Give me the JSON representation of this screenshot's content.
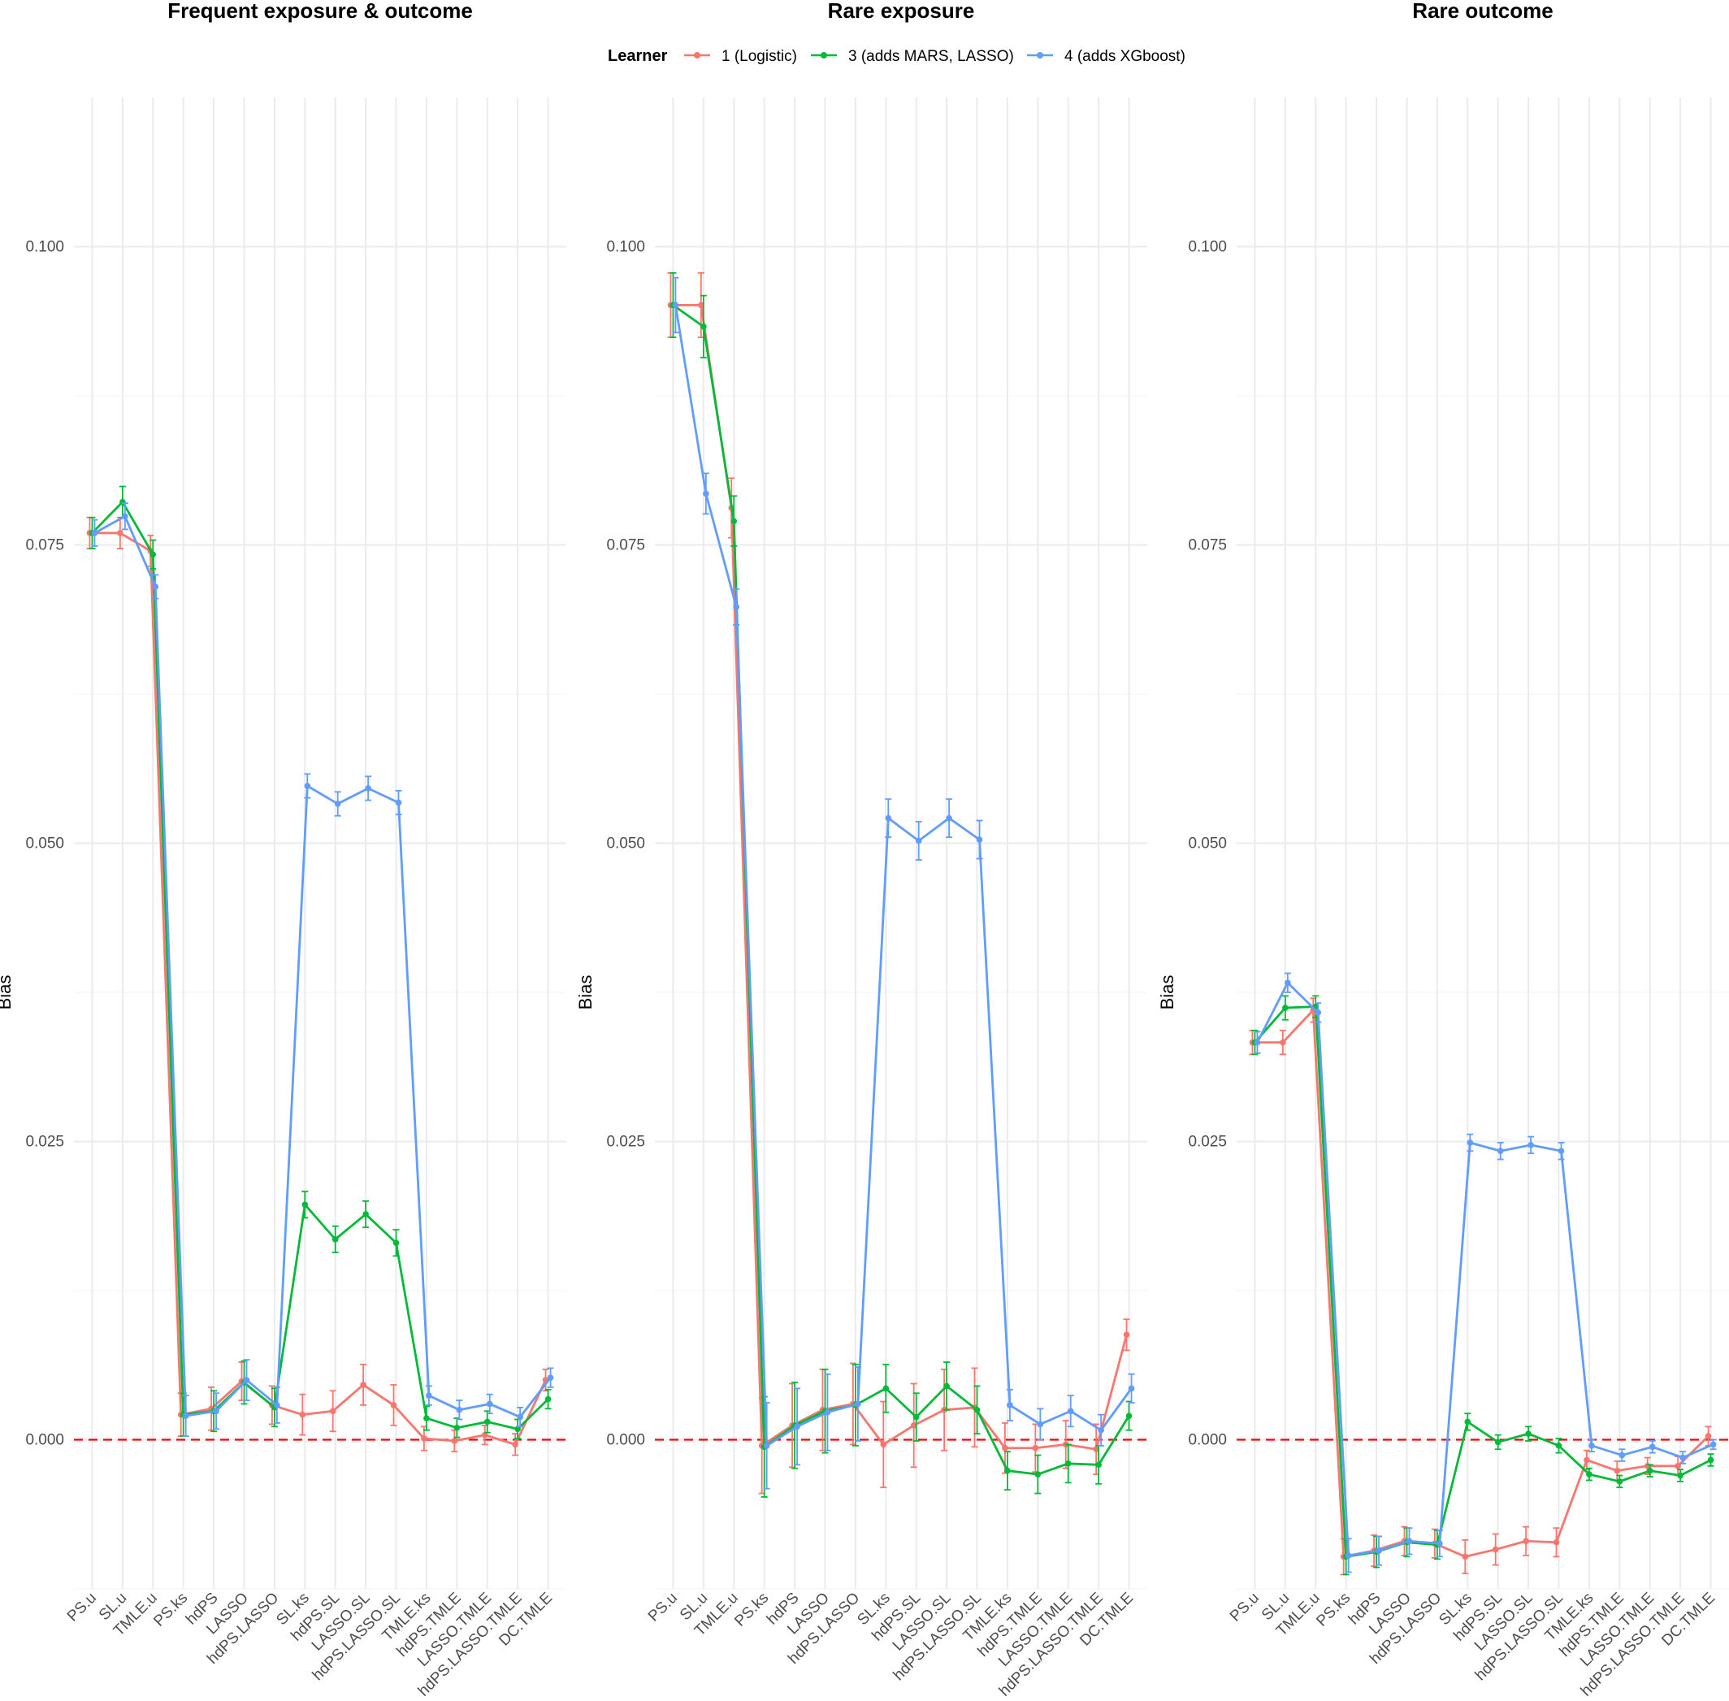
{
  "legend": {
    "title": "Learner",
    "entries": [
      "1 (Logistic)",
      "3 (adds MARS, LASSO)",
      "4 (adds XGboost)"
    ],
    "colors": [
      "#F8766D",
      "#00BA38",
      "#619CFF"
    ],
    "position": "top"
  },
  "chart_data": [
    {
      "type": "line",
      "title": "Frequent exposure & outcome",
      "xlabel": "",
      "ylabel": "Bias",
      "ylim": [
        -0.0125,
        0.1125
      ],
      "yticks": [
        "0.000",
        "0.025",
        "0.050",
        "0.075",
        "0.100"
      ],
      "reference_line": {
        "y": 0,
        "style": "dashed",
        "color": "#FF0000"
      },
      "grid": true,
      "categories": [
        "PS.u",
        "SL.u",
        "TMLE.u",
        "PS.ks",
        "hdPS",
        "LASSO",
        "hdPS.LASSO",
        "SL.ks",
        "hdPS.SL",
        "LASSO.SL",
        "hdPS.LASSO.SL",
        "TMLE.ks",
        "hdPS.TMLE",
        "LASSO.TMLE",
        "hdPS.LASSO.TMLE",
        "DC.TMLE"
      ],
      "series": [
        {
          "name": "1 (Logistic)",
          "values": [
            0.076,
            0.076,
            0.0745,
            0.0021,
            0.0026,
            0.0049,
            0.0029,
            0.0021,
            0.0024,
            0.0046,
            0.0029,
            0.0001,
            -0.0001,
            0.0004,
            -0.0004,
            0.005
          ],
          "err": [
            0.0013,
            0.0013,
            0.0013,
            0.0018,
            0.0018,
            0.0016,
            0.0016,
            0.0017,
            0.0017,
            0.0017,
            0.0017,
            0.001,
            0.0009,
            0.0008,
            0.0009,
            0.0009
          ]
        },
        {
          "name": "3 (adds MARS, LASSO)",
          "values": [
            0.076,
            0.0786,
            0.0742,
            0.0021,
            0.0024,
            0.0048,
            0.0027,
            0.0197,
            0.0168,
            0.0189,
            0.0165,
            0.0018,
            0.001,
            0.0015,
            0.0009,
            0.0034
          ],
          "err": [
            0.0013,
            0.0013,
            0.0012,
            0.0018,
            0.0017,
            0.0018,
            0.0016,
            0.0011,
            0.0011,
            0.0011,
            0.0011,
            0.001,
            0.0008,
            0.0009,
            0.0008,
            0.0008
          ]
        },
        {
          "name": "4 (adds XGboost)",
          "values": [
            0.076,
            0.0774,
            0.0715,
            0.002,
            0.0024,
            0.005,
            0.0029,
            0.0548,
            0.0533,
            0.0546,
            0.0534,
            0.0037,
            0.0025,
            0.003,
            0.0019,
            0.0052
          ],
          "err": [
            0.0011,
            0.0011,
            0.001,
            0.0017,
            0.0015,
            0.0017,
            0.0015,
            0.001,
            0.001,
            0.001,
            0.001,
            0.0008,
            0.0008,
            0.0008,
            0.0008,
            0.0008
          ]
        }
      ]
    },
    {
      "type": "line",
      "title": "Rare exposure",
      "xlabel": "",
      "ylabel": "Bias",
      "ylim": [
        -0.0125,
        0.1125
      ],
      "yticks": [
        "0.000",
        "0.025",
        "0.050",
        "0.075",
        "0.100"
      ],
      "reference_line": {
        "y": 0,
        "style": "dashed",
        "color": "#FF0000"
      },
      "grid": true,
      "categories": [
        "PS.u",
        "SL.u",
        "TMLE.u",
        "PS.ks",
        "hdPS",
        "LASSO",
        "hdPS.LASSO",
        "SL.ks",
        "hdPS.SL",
        "LASSO.SL",
        "hdPS.LASSO.SL",
        "TMLE.ks",
        "hdPS.TMLE",
        "LASSO.TMLE",
        "hdPS.LASSO.TMLE",
        "DC.TMLE"
      ],
      "series": [
        {
          "name": "1 (Logistic)",
          "values": [
            0.0951,
            0.0951,
            0.0781,
            -0.0005,
            0.0012,
            0.0025,
            0.003,
            -0.0004,
            0.0012,
            0.0025,
            0.0027,
            -0.0007,
            -0.0007,
            -0.0004,
            -0.0008,
            0.0088
          ],
          "err": [
            0.0027,
            0.0027,
            0.0025,
            0.004,
            0.0035,
            0.0034,
            0.0034,
            0.0036,
            0.0035,
            0.0034,
            0.0033,
            0.0021,
            0.002,
            0.002,
            0.0021,
            0.0013
          ]
        },
        {
          "name": "3 (adds MARS, LASSO)",
          "values": [
            0.0951,
            0.0933,
            0.077,
            -0.0006,
            0.0012,
            0.0024,
            0.0029,
            0.0043,
            0.0019,
            0.0045,
            0.0025,
            -0.0026,
            -0.0029,
            -0.002,
            -0.0021,
            0.002
          ],
          "err": [
            0.0027,
            0.0026,
            0.0021,
            0.0042,
            0.0036,
            0.0035,
            0.0034,
            0.002,
            0.002,
            0.002,
            0.002,
            0.0016,
            0.0016,
            0.0016,
            0.0016,
            0.0012
          ]
        },
        {
          "name": "4 (adds XGboost)",
          "values": [
            0.0951,
            0.0793,
            0.0698,
            -0.0005,
            0.0011,
            0.0023,
            0.003,
            0.0521,
            0.0502,
            0.0521,
            0.0503,
            0.0029,
            0.0013,
            0.0024,
            0.0008,
            0.0043
          ],
          "err": [
            0.0023,
            0.0017,
            0.0015,
            0.0036,
            0.0032,
            0.0032,
            0.0031,
            0.0016,
            0.0016,
            0.0016,
            0.0016,
            0.0013,
            0.0013,
            0.0013,
            0.0013,
            0.0012
          ]
        }
      ]
    },
    {
      "type": "line",
      "title": "Rare outcome",
      "xlabel": "",
      "ylabel": "Bias",
      "ylim": [
        -0.0125,
        0.1125
      ],
      "yticks": [
        "0.000",
        "0.025",
        "0.050",
        "0.075",
        "0.100"
      ],
      "reference_line": {
        "y": 0,
        "style": "dashed",
        "color": "#FF0000"
      },
      "grid": true,
      "categories": [
        "PS.u",
        "SL.u",
        "TMLE.u",
        "PS.ks",
        "hdPS",
        "LASSO",
        "hdPS.LASSO",
        "SL.ks",
        "hdPS.SL",
        "LASSO.SL",
        "hdPS.LASSO.SL",
        "TMLE.ks",
        "hdPS.TMLE",
        "LASSO.TMLE",
        "hdPS.LASSO.TMLE",
        "DC.TMLE"
      ],
      "series": [
        {
          "name": "1 (Logistic)",
          "values": [
            0.0333,
            0.0333,
            0.036,
            -0.0098,
            -0.0093,
            -0.0085,
            -0.0087,
            -0.0098,
            -0.0092,
            -0.0085,
            -0.0086,
            -0.0017,
            -0.0026,
            -0.0022,
            -0.0022,
            0.0003
          ],
          "err": [
            0.001,
            0.001,
            0.001,
            0.0015,
            0.0013,
            0.0012,
            0.0012,
            0.0014,
            0.0013,
            0.0012,
            0.0012,
            0.0008,
            0.0008,
            0.0007,
            0.0008,
            0.0008
          ]
        },
        {
          "name": "3 (adds MARS, LASSO)",
          "values": [
            0.0333,
            0.0362,
            0.0363,
            -0.0098,
            -0.0094,
            -0.0086,
            -0.0088,
            0.0015,
            -0.0002,
            0.0005,
            -0.0005,
            -0.0029,
            -0.0035,
            -0.0026,
            -0.003,
            -0.0017
          ],
          "err": [
            0.001,
            0.001,
            0.0009,
            0.0015,
            0.0013,
            0.0012,
            0.0012,
            0.0007,
            0.0006,
            0.0006,
            0.0006,
            0.0005,
            0.0005,
            0.0005,
            0.0005,
            0.0005
          ]
        },
        {
          "name": "4 (adds XGboost)",
          "values": [
            0.0333,
            0.0383,
            0.0358,
            -0.0097,
            -0.0093,
            -0.0085,
            -0.0087,
            0.0249,
            0.0242,
            0.0247,
            0.0242,
            -0.0005,
            -0.0013,
            -0.0006,
            -0.0015,
            -0.0004
          ],
          "err": [
            0.0009,
            0.0008,
            0.0008,
            0.0014,
            0.0012,
            0.0011,
            0.0011,
            0.0007,
            0.0007,
            0.0007,
            0.0007,
            0.0005,
            0.0005,
            0.0005,
            0.0005,
            0.0004
          ]
        }
      ]
    }
  ]
}
